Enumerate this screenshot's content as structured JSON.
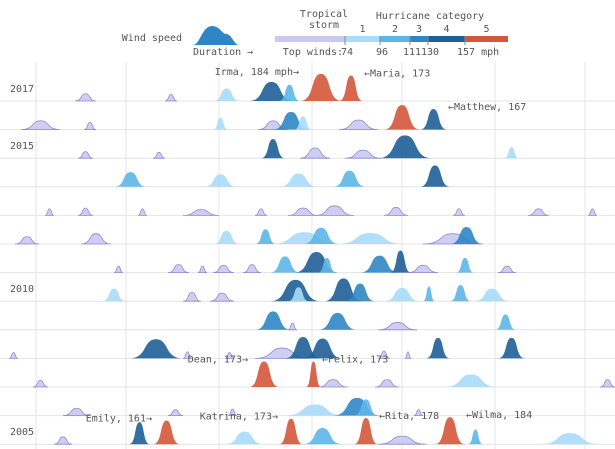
{
  "chart_data": {
    "type": "ridgeline",
    "legend": {
      "wind_label": "Wind speed",
      "duration_label": "Duration",
      "duration_arrow": "→",
      "tropical_label": "Tropical storm",
      "category_title": "Hurricane category",
      "category_labels": [
        "1",
        "2",
        "3",
        "4",
        "5"
      ],
      "winds_title": "Top winds:",
      "thresholds": [
        74,
        96,
        111,
        130,
        {
          "value": 157,
          "label": "157 mph"
        }
      ],
      "colors": [
        "#c9c8f3",
        "#a9dcf8",
        "#5db6e8",
        "#2f86c6",
        "#1f5f98",
        "#d5563a"
      ]
    },
    "xlim": [
      140,
      345
    ],
    "x_grid": [
      152,
      182,
      213,
      244,
      274,
      305,
      335
    ],
    "ylim": [
      0,
      190
    ],
    "categories": [
      "2017",
      null,
      "2015",
      null,
      null,
      null,
      null,
      "2010",
      null,
      null,
      null,
      null,
      "2005"
    ],
    "seasons": [
      [
        [
          165,
          7,
          50
        ],
        [
          195,
          4,
          45
        ],
        [
          211,
          9,
          85
        ],
        [
          223,
          15,
          130
        ],
        [
          233,
          7,
          110
        ],
        [
          240,
          14,
          184,
          "Irma, 184 mph→"
        ],
        [
          253,
          8,
          173,
          "←Maria, 173"
        ]
      ],
      [
        [
          147,
          13,
          60
        ],
        [
          168,
          4,
          50
        ],
        [
          211,
          5,
          80
        ],
        [
          226,
          10,
          60
        ],
        [
          231,
          12,
          120
        ],
        [
          238,
          6,
          90
        ],
        [
          253,
          13,
          65
        ],
        [
          268,
          12,
          167
        ],
        [
          280,
          9,
          140,
          "←Matthew, 167"
        ]
      ],
      [
        [
          166,
          5,
          45
        ],
        [
          191,
          4,
          40
        ],
        [
          227,
          8,
          130
        ],
        [
          240,
          10,
          70
        ],
        [
          255,
          12,
          55
        ],
        [
          266,
          18,
          155
        ],
        [
          308,
          5,
          75
        ]
      ],
      [
        [
          178,
          11,
          100
        ],
        [
          208,
          11,
          85
        ],
        [
          233,
          13,
          90
        ],
        [
          251,
          11,
          110
        ],
        [
          280,
          10,
          145
        ]
      ],
      [
        [
          155,
          3,
          45
        ],
        [
          166,
          5,
          50
        ],
        [
          186,
          3,
          45
        ],
        [
          201,
          12,
          40
        ],
        [
          225,
          4,
          45
        ],
        [
          236,
          10,
          50
        ],
        [
          245,
          13,
          65
        ],
        [
          268,
          8,
          55
        ],
        [
          291,
          4,
          45
        ],
        [
          316,
          7,
          45
        ],
        [
          336,
          3,
          45
        ]
      ],
      [
        [
          145,
          8,
          50
        ],
        [
          167,
          10,
          70
        ],
        [
          211,
          9,
          90
        ],
        [
          225,
          7,
          100
        ],
        [
          230,
          23,
          80
        ],
        [
          241,
          12,
          110
        ],
        [
          252,
          23,
          75
        ],
        [
          281,
          20,
          70
        ],
        [
          290,
          11,
          115
        ]
      ],
      [
        [
          178,
          3,
          45
        ],
        [
          196,
          7,
          55
        ],
        [
          206,
          3,
          45
        ],
        [
          211,
          7,
          50
        ],
        [
          221,
          6,
          55
        ],
        [
          230,
          10,
          110
        ],
        [
          238,
          15,
          140
        ],
        [
          246,
          6,
          100
        ],
        [
          260,
          13,
          115
        ],
        [
          270,
          7,
          150
        ],
        [
          276,
          10,
          50
        ],
        [
          292,
          6,
          100
        ],
        [
          306,
          6,
          45
        ]
      ],
      [
        [
          174,
          8,
          85
        ],
        [
          201,
          6,
          60
        ],
        [
          210,
          8,
          55
        ],
        [
          230,
          17,
          145
        ],
        [
          236,
          7,
          95
        ],
        [
          248,
          13,
          155
        ],
        [
          255,
          10,
          120
        ],
        [
          268,
          12,
          90
        ],
        [
          281,
          4,
          100
        ],
        [
          290,
          7,
          110
        ],
        [
          298,
          12,
          85
        ]
      ],
      [
        [
          225,
          12,
          125
        ],
        [
          236,
          3,
          45
        ],
        [
          246,
          13,
          115
        ],
        [
          266,
          13,
          50
        ],
        [
          305,
          7,
          105
        ]
      ],
      [
        [
          143,
          3,
          40
        ],
        [
          183,
          18,
          130
        ],
        [
          201,
          3,
          45
        ],
        [
          215,
          3,
          40
        ],
        [
          225,
          18,
          70
        ],
        [
          235,
          12,
          145
        ],
        [
          241,
          13,
          135
        ],
        [
          266,
          4,
          50
        ],
        [
          275,
          2,
          45
        ],
        [
          282,
          8,
          140
        ],
        [
          306,
          9,
          140
        ]
      ],
      [
        [
          151,
          5,
          45
        ],
        [
          223,
          10,
          173,
          "Dean, 173→"
        ],
        [
          242,
          5,
          173,
          "←Felix, 173"
        ],
        [
          246,
          10,
          50
        ],
        [
          265,
          8,
          50
        ],
        [
          288,
          18,
          85
        ],
        [
          340,
          5,
          50
        ]
      ],
      [
        [
          161,
          9,
          50
        ],
        [
          196,
          5,
          40
        ],
        [
          216,
          3,
          45
        ],
        [
          235,
          20,
          75
        ],
        [
          251,
          16,
          120
        ],
        [
          258,
          8,
          110
        ],
        [
          278,
          3,
          40
        ]
      ],
      [
        [
          158,
          6,
          50
        ],
        [
          183,
          7,
          150
        ],
        [
          191,
          9,
          161,
          "Emily, 161→"
        ],
        [
          215,
          13,
          85
        ],
        [
          233,
          8,
          173,
          "Katrina, 173→"
        ],
        [
          241,
          13,
          110
        ],
        [
          258,
          8,
          178,
          "←Rita, 178"
        ],
        [
          266,
          16,
          55
        ],
        [
          285,
          10,
          184,
          "←Wilma, 184"
        ],
        [
          296,
          5,
          100
        ],
        [
          320,
          20,
          75
        ]
      ]
    ]
  }
}
